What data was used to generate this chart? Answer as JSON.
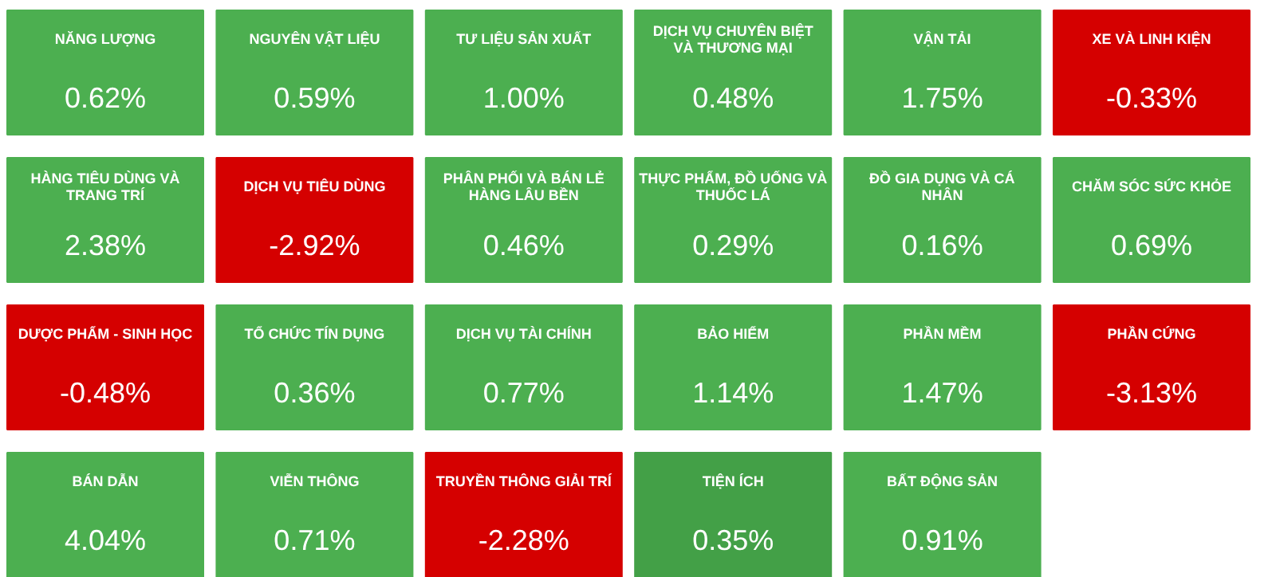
{
  "chart_data": {
    "type": "other",
    "categories": [
      "NĂNG LƯỢNG",
      "NGUYÊN VẬT LIỆU",
      "TƯ LIỆU SẢN XUẤT",
      "DỊCH VỤ CHUYÊN BIỆT VÀ THƯƠNG MẠI",
      "VẬN TẢI",
      "XE VÀ LINH KIỆN",
      "HÀNG TIÊU DÙNG VÀ TRANG TRÍ",
      "DỊCH VỤ TIÊU DÙNG",
      "PHÂN PHỐI VÀ BÁN LẺ HÀNG LÂU BỀN",
      "THỰC PHẨM, ĐỒ UỐNG VÀ THUỐC LÁ",
      "ĐỒ GIA DỤNG VÀ CÁ NHÂN",
      "CHĂM SÓC SỨC KHỎE",
      "DƯỢC PHẨM - SINH HỌC",
      "TỔ CHỨC TÍN DỤNG",
      "DỊCH VỤ TÀI CHÍNH",
      "BẢO HIỂM",
      "PHẦN MỀM",
      "PHẦN CỨNG",
      "BÁN DẪN",
      "VIỄN THÔNG",
      "TRUYỀN THÔNG GIẢI TRÍ",
      "TIỆN ÍCH",
      "BẤT ĐỘNG SẢN"
    ],
    "values": [
      0.62,
      0.59,
      1.0,
      0.48,
      1.75,
      -0.33,
      2.38,
      -2.92,
      0.46,
      0.29,
      0.16,
      0.69,
      -0.48,
      0.36,
      0.77,
      1.14,
      1.47,
      -3.13,
      4.04,
      0.71,
      -2.28,
      0.35,
      0.91
    ],
    "value_labels": [
      "0.62%",
      "0.59%",
      "1.00%",
      "0.48%",
      "1.75%",
      "-0.33%",
      "2.38%",
      "-2.92%",
      "0.46%",
      "0.29%",
      "0.16%",
      "0.69%",
      "-0.48%",
      "0.36%",
      "0.77%",
      "1.14%",
      "1.47%",
      "-3.13%",
      "4.04%",
      "0.71%",
      "-2.28%",
      "0.35%",
      "0.91%"
    ],
    "colors": [
      "#4caf50",
      "#4caf50",
      "#4caf50",
      "#4caf50",
      "#4caf50",
      "#d50000",
      "#4caf50",
      "#d50000",
      "#4caf50",
      "#4caf50",
      "#4caf50",
      "#4caf50",
      "#d50000",
      "#4caf50",
      "#4caf50",
      "#4caf50",
      "#4caf50",
      "#d50000",
      "#4caf50",
      "#4caf50",
      "#d50000",
      "#43a047",
      "#4caf50"
    ]
  }
}
